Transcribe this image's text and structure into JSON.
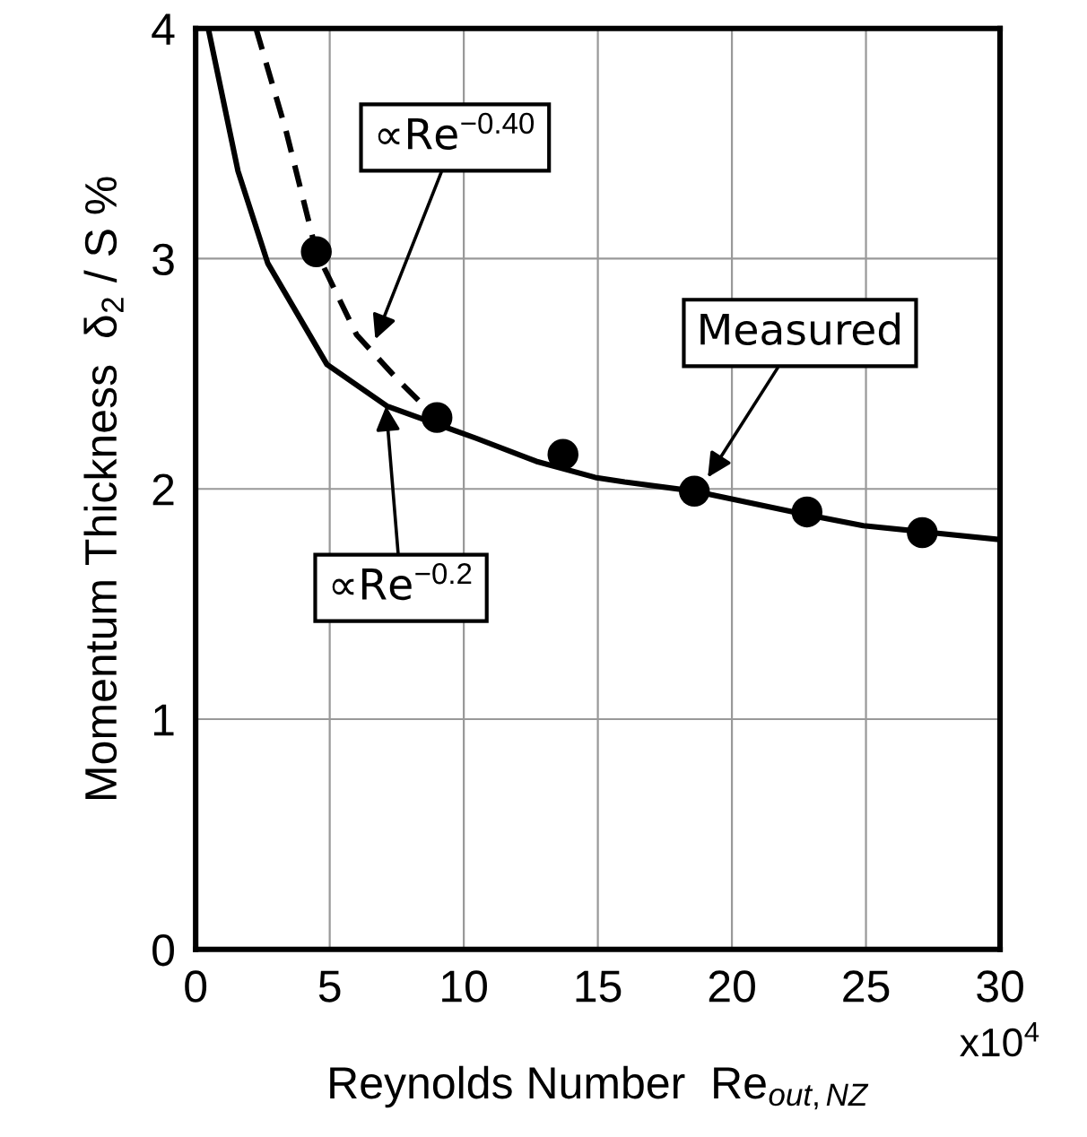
{
  "chart_data": {
    "type": "line",
    "xlabel": "Reynolds Number  Re$_{out,NZ}$",
    "ylabel": "Momentum Thickness  δ$_{2}$ / S %",
    "xlim": [
      0,
      30
    ],
    "ylim": [
      0,
      4
    ],
    "xticks": [
      0,
      5,
      10,
      15,
      20,
      25,
      30
    ],
    "yticks": [
      0,
      1,
      2,
      3,
      4
    ],
    "grid": true,
    "legend": false,
    "series": [
      {
        "color": "#000000",
        "line_style": "solid",
        "marker": "none",
        "x": [
          0.47,
          1.58,
          2.69,
          4.9,
          7.13,
          10.46,
          12.7,
          14.9,
          16.0,
          18.6,
          22.7,
          24.9,
          30
        ],
        "values": [
          4.0,
          3.38,
          2.98,
          2.54,
          2.36,
          2.22,
          2.12,
          2.05,
          2.03,
          1.99,
          1.89,
          1.84,
          1.78
        ]
      },
      {
        "color": "#000000",
        "line_style": "dashed",
        "marker": "none",
        "x": [
          2.25,
          3.36,
          4.5,
          6.0,
          7.57,
          8.7
        ],
        "values": [
          4.0,
          3.56,
          3.03,
          2.67,
          2.47,
          2.34
        ]
      },
      {
        "type": "scatter",
        "color": "#000000",
        "marker": "circle",
        "x": [
          4.5,
          9.0,
          13.7,
          18.6,
          22.8,
          27.1
        ],
        "values": [
          3.03,
          2.31,
          2.15,
          1.99,
          1.9,
          1.81
        ]
      }
    ],
    "annotations": [
      {
        "text": "∝Re$^{−0.40}$",
        "x": 6.7,
        "y": 2.65
      },
      {
        "text": "Measured",
        "x": 19.1,
        "y": 2.05
      },
      {
        "text": "∝Re$^{−0.2}$",
        "x": 7.1,
        "y": 2.36
      },
      "x10$^{4}$"
    ]
  }
}
